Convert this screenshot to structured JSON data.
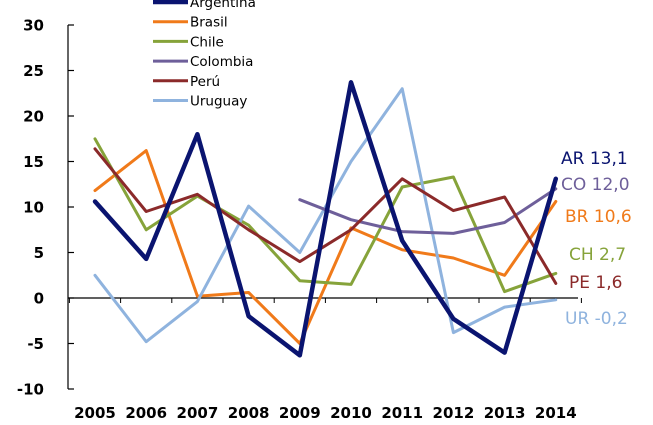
{
  "chart_data": {
    "type": "line",
    "title": "",
    "xlabel": "",
    "ylabel": "",
    "x": [
      "2005",
      "2006",
      "2007",
      "2008",
      "2009",
      "2010",
      "2011",
      "2012",
      "2013",
      "2014"
    ],
    "ylim": [
      -10,
      30
    ],
    "yticks": [
      -10,
      -5,
      0,
      5,
      10,
      15,
      20,
      25,
      30
    ],
    "ytick_labels": [
      "-10",
      "-5",
      "0",
      "5",
      "10",
      "15",
      "20",
      "25",
      "30"
    ],
    "grid": false,
    "legend_position": "top-center",
    "series": [
      {
        "name": "Argentina",
        "color": "#0a1470",
        "values": [
          10.6,
          4.3,
          18.0,
          -2.0,
          -6.3,
          23.7,
          6.3,
          -2.3,
          -6.0,
          13.1
        ],
        "end_label": "AR 13,1"
      },
      {
        "name": "Brasil",
        "color": "#f07a1a",
        "values": [
          11.8,
          16.2,
          0.2,
          0.6,
          -5.0,
          7.7,
          5.3,
          4.4,
          2.5,
          10.6
        ],
        "end_label": "BR 10,6"
      },
      {
        "name": "Chile",
        "color": "#86a33a",
        "values": [
          17.5,
          7.5,
          11.2,
          8.0,
          1.9,
          1.5,
          12.2,
          13.3,
          0.7,
          2.7
        ],
        "end_label": "CH 2,7"
      },
      {
        "name": "Colombia",
        "color": "#6e5f9a",
        "values": [
          null,
          null,
          null,
          null,
          10.8,
          8.6,
          7.3,
          7.1,
          8.3,
          12.0
        ],
        "end_label": "CO 12,0"
      },
      {
        "name": "Perú",
        "color": "#8b2a2a",
        "values": [
          16.4,
          9.5,
          11.4,
          7.5,
          4.0,
          7.5,
          13.1,
          9.6,
          11.1,
          1.6
        ],
        "end_label": "PE 1,6"
      },
      {
        "name": "Uruguay",
        "color": "#8fb3de",
        "values": [
          2.5,
          -4.8,
          -0.4,
          10.1,
          5.0,
          15.0,
          23.0,
          -3.8,
          -1.0,
          -0.2
        ],
        "end_label": "UR -0,2"
      }
    ]
  }
}
